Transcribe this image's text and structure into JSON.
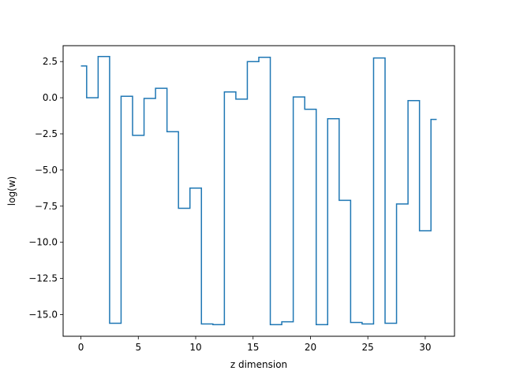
{
  "chart_data": {
    "type": "line",
    "drawstyle": "steps-mid",
    "title": "",
    "xlabel": "z dimension",
    "ylabel": "log(w)",
    "xlim": [
      -1.55,
      32.55
    ],
    "ylim": [
      -16.5,
      3.6
    ],
    "xticks": [
      0,
      5,
      10,
      15,
      20,
      25,
      30
    ],
    "xtick_labels": [
      "0",
      "5",
      "10",
      "15",
      "20",
      "25",
      "30"
    ],
    "yticks": [
      2.5,
      0.0,
      -2.5,
      -5.0,
      -7.5,
      -10.0,
      -12.5,
      -15.0
    ],
    "ytick_labels": [
      "2.5",
      "0.0",
      "−2.5",
      "−5.0",
      "−7.5",
      "−10.0",
      "−12.5",
      "−15.0"
    ],
    "grid": false,
    "color": "#1f77b4",
    "series": [
      {
        "x": [
          0,
          1,
          2,
          3,
          4,
          5,
          6,
          7,
          8,
          9,
          10,
          11,
          12,
          13,
          14,
          15,
          16,
          17,
          18,
          19,
          20,
          21,
          22,
          23,
          24,
          25,
          26,
          27,
          28,
          29,
          30,
          31
        ],
        "values": [
          2.2,
          0.0,
          2.85,
          -15.6,
          0.1,
          -2.6,
          -0.05,
          0.65,
          -2.35,
          -7.65,
          -6.25,
          -15.65,
          -15.7,
          0.4,
          -0.1,
          2.5,
          2.8,
          -15.7,
          -15.5,
          0.05,
          -0.8,
          -15.7,
          -1.45,
          -7.1,
          -15.55,
          -15.65,
          2.75,
          -15.6,
          -7.35,
          -0.2,
          -9.2,
          -1.5
        ]
      }
    ]
  }
}
